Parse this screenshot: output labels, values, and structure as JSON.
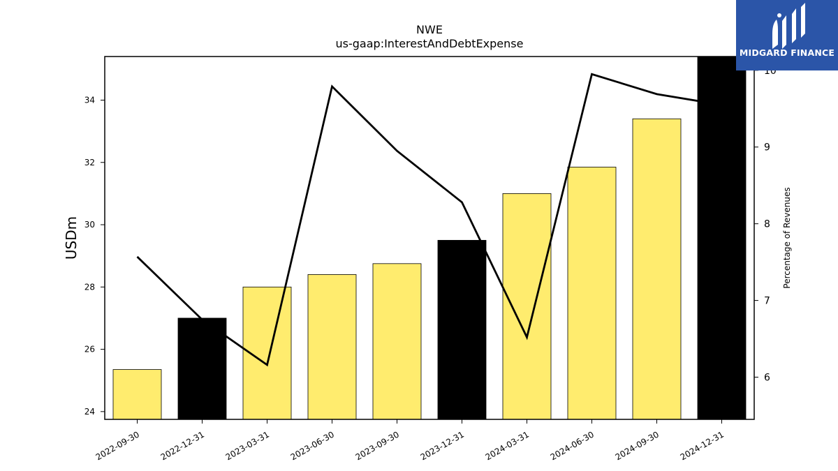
{
  "chart_data": {
    "type": "bar",
    "title": "NWE",
    "subtitle": "us-gaap:InterestAndDebtExpense",
    "ylabel": "USDm",
    "y2label": "Percentage of Revenues",
    "categories": [
      "2022-09-30",
      "2022-12-31",
      "2023-03-31",
      "2023-06-30",
      "2023-09-30",
      "2023-12-31",
      "2024-03-31",
      "2024-06-30",
      "2024-09-30",
      "2024-12-31"
    ],
    "series": [
      {
        "axis": "left",
        "type": "bar",
        "values": [
          25.35,
          27.0,
          28.0,
          28.4,
          28.75,
          29.5,
          31.0,
          31.85,
          33.4,
          35.4
        ],
        "colors": [
          "#ffec6e",
          "#000000",
          "#ffec6e",
          "#ffec6e",
          "#ffec6e",
          "#000000",
          "#ffec6e",
          "#ffec6e",
          "#ffec6e",
          "#000000"
        ]
      },
      {
        "axis": "right",
        "type": "line",
        "color": "#000000",
        "values": [
          7.57,
          6.75,
          6.16,
          9.79,
          8.95,
          8.28,
          6.52,
          9.95,
          9.69,
          9.55
        ]
      }
    ],
    "ylim": [
      23.75,
      35.4
    ],
    "yticks": [
      24,
      26,
      28,
      30,
      32,
      34
    ],
    "y2lim": [
      5.45,
      10.18
    ],
    "y2ticks": [
      6,
      7,
      8,
      9,
      10
    ],
    "grid": false
  },
  "logo": {
    "text": "MIDGARD FINANCE",
    "color": "#2b55a8"
  }
}
